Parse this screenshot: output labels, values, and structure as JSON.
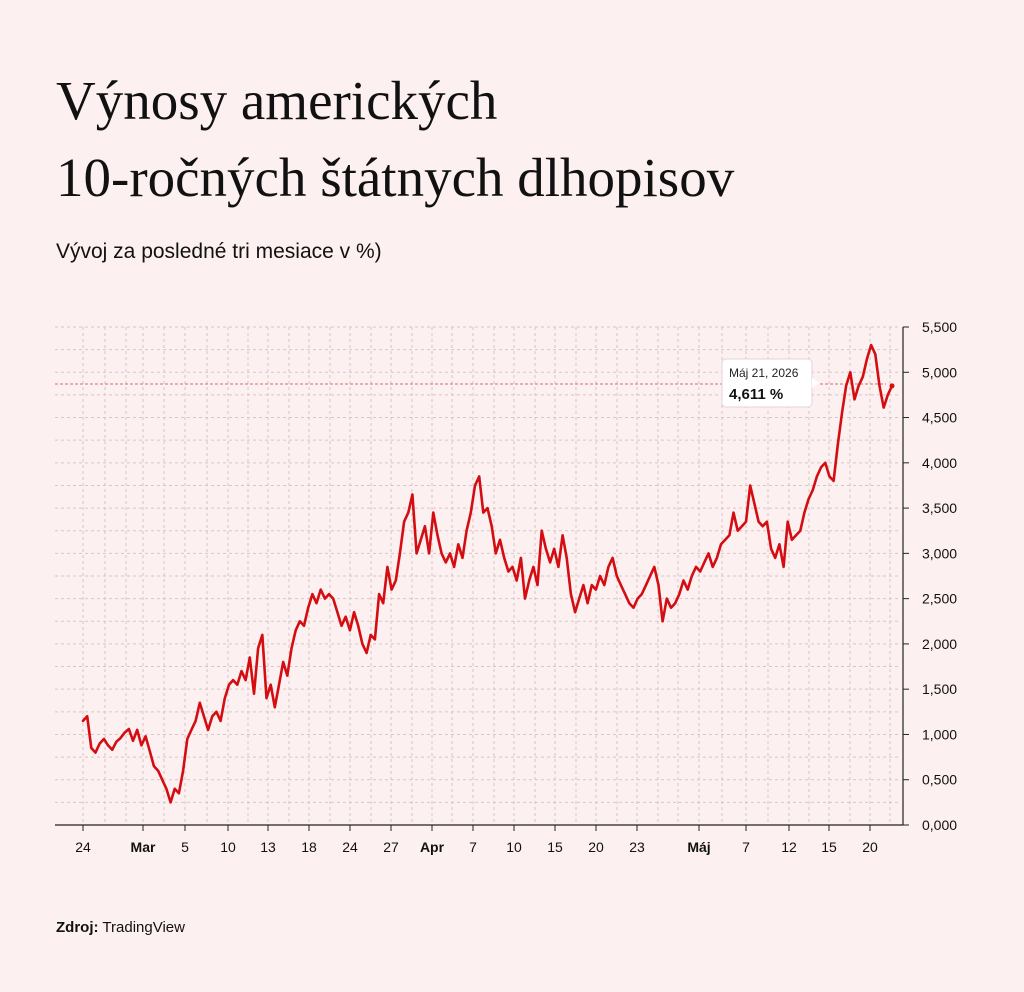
{
  "header": {
    "title_line1": "Výnosy amerických",
    "title_line2": "10-ročných štátnych dlhopisov",
    "subtitle": "Vývoj za posledné tri mesiace v %)"
  },
  "footer": {
    "source_label": "Zdroj:",
    "source_value": "TradingView"
  },
  "tooltip": {
    "date": "Máj 21, 2026",
    "value": "4,611 %"
  },
  "colors": {
    "line": "#d40d12",
    "background": "#fdf0f0",
    "grid": "#d8c6c6",
    "reference_line": "#e06a6a"
  },
  "chart_data": {
    "type": "line",
    "title": "Výnosy amerických 10-ročných štátnych dlhopisov",
    "subtitle": "Vývoj za posledné tri mesiace v %)",
    "xlabel": "",
    "ylabel": "",
    "ylim": [
      0,
      5.5
    ],
    "y_ticks": [
      0,
      0.5,
      1,
      1.5,
      2,
      2.5,
      3,
      3.5,
      4,
      4.5,
      5,
      5.5
    ],
    "y_tick_labels": [
      "0,000",
      "0,500",
      "1,000",
      "1,500",
      "2,000",
      "2,500",
      "3,000",
      "3,500",
      "4,000",
      "4,500",
      "5,000",
      "5,500"
    ],
    "y_axis_side": "right",
    "grid": true,
    "x_ticks": [
      {
        "label": "24",
        "bold": false
      },
      {
        "label": "Mar",
        "bold": true
      },
      {
        "label": "5",
        "bold": false
      },
      {
        "label": "10",
        "bold": false
      },
      {
        "label": "13",
        "bold": false
      },
      {
        "label": "18",
        "bold": false
      },
      {
        "label": "24",
        "bold": false
      },
      {
        "label": "27",
        "bold": false
      },
      {
        "label": "Apr",
        "bold": true
      },
      {
        "label": "7",
        "bold": false
      },
      {
        "label": "10",
        "bold": false
      },
      {
        "label": "15",
        "bold": false
      },
      {
        "label": "20",
        "bold": false
      },
      {
        "label": "23",
        "bold": false
      },
      {
        "label": "Máj",
        "bold": true
      },
      {
        "label": "7",
        "bold": false
      },
      {
        "label": "12",
        "bold": false
      },
      {
        "label": "15",
        "bold": false
      },
      {
        "label": "20",
        "bold": false
      }
    ],
    "reference_value": 4.87,
    "series": [
      {
        "values": [
          1.15,
          1.2,
          0.85,
          0.8,
          0.9,
          0.95,
          0.88,
          0.83,
          0.92,
          0.96,
          1.02,
          1.06,
          0.93,
          1.05,
          0.88,
          0.98,
          0.82,
          0.65,
          0.6,
          0.5,
          0.4,
          0.25,
          0.4,
          0.35,
          0.6,
          0.95,
          1.05,
          1.15,
          1.35,
          1.2,
          1.05,
          1.2,
          1.25,
          1.15,
          1.4,
          1.55,
          1.6,
          1.55,
          1.7,
          1.6,
          1.85,
          1.45,
          1.95,
          2.1,
          1.4,
          1.55,
          1.3,
          1.55,
          1.8,
          1.65,
          1.95,
          2.15,
          2.25,
          2.2,
          2.4,
          2.55,
          2.45,
          2.6,
          2.5,
          2.55,
          2.5,
          2.35,
          2.2,
          2.3,
          2.15,
          2.35,
          2.2,
          2.0,
          1.9,
          2.1,
          2.05,
          2.55,
          2.45,
          2.85,
          2.6,
          2.7,
          3.0,
          3.35,
          3.45,
          3.65,
          3.0,
          3.15,
          3.3,
          3.0,
          3.45,
          3.2,
          3.0,
          2.9,
          3.0,
          2.85,
          3.1,
          2.95,
          3.25,
          3.45,
          3.75,
          3.85,
          3.45,
          3.5,
          3.3,
          3.0,
          3.15,
          2.95,
          2.8,
          2.85,
          2.7,
          2.95,
          2.5,
          2.7,
          2.85,
          2.65,
          3.25,
          3.05,
          2.9,
          3.05,
          2.85,
          3.2,
          2.95,
          2.55,
          2.35,
          2.5,
          2.65,
          2.45,
          2.65,
          2.6,
          2.75,
          2.65,
          2.85,
          2.95,
          2.75,
          2.65,
          2.55,
          2.45,
          2.4,
          2.5,
          2.55,
          2.65,
          2.75,
          2.85,
          2.65,
          2.25,
          2.5,
          2.4,
          2.45,
          2.55,
          2.7,
          2.6,
          2.75,
          2.85,
          2.8,
          2.9,
          3.0,
          2.85,
          2.95,
          3.1,
          3.15,
          3.2,
          3.45,
          3.25,
          3.3,
          3.35,
          3.75,
          3.55,
          3.35,
          3.3,
          3.35,
          3.05,
          2.95,
          3.1,
          2.85,
          3.35,
          3.15,
          3.2,
          3.25,
          3.45,
          3.6,
          3.7,
          3.85,
          3.95,
          4.0,
          3.85,
          3.8,
          4.2,
          4.55,
          4.85,
          5.0,
          4.7,
          4.85,
          4.95,
          5.15,
          5.3,
          5.2,
          4.85,
          4.61,
          4.75,
          4.85
        ]
      }
    ]
  }
}
